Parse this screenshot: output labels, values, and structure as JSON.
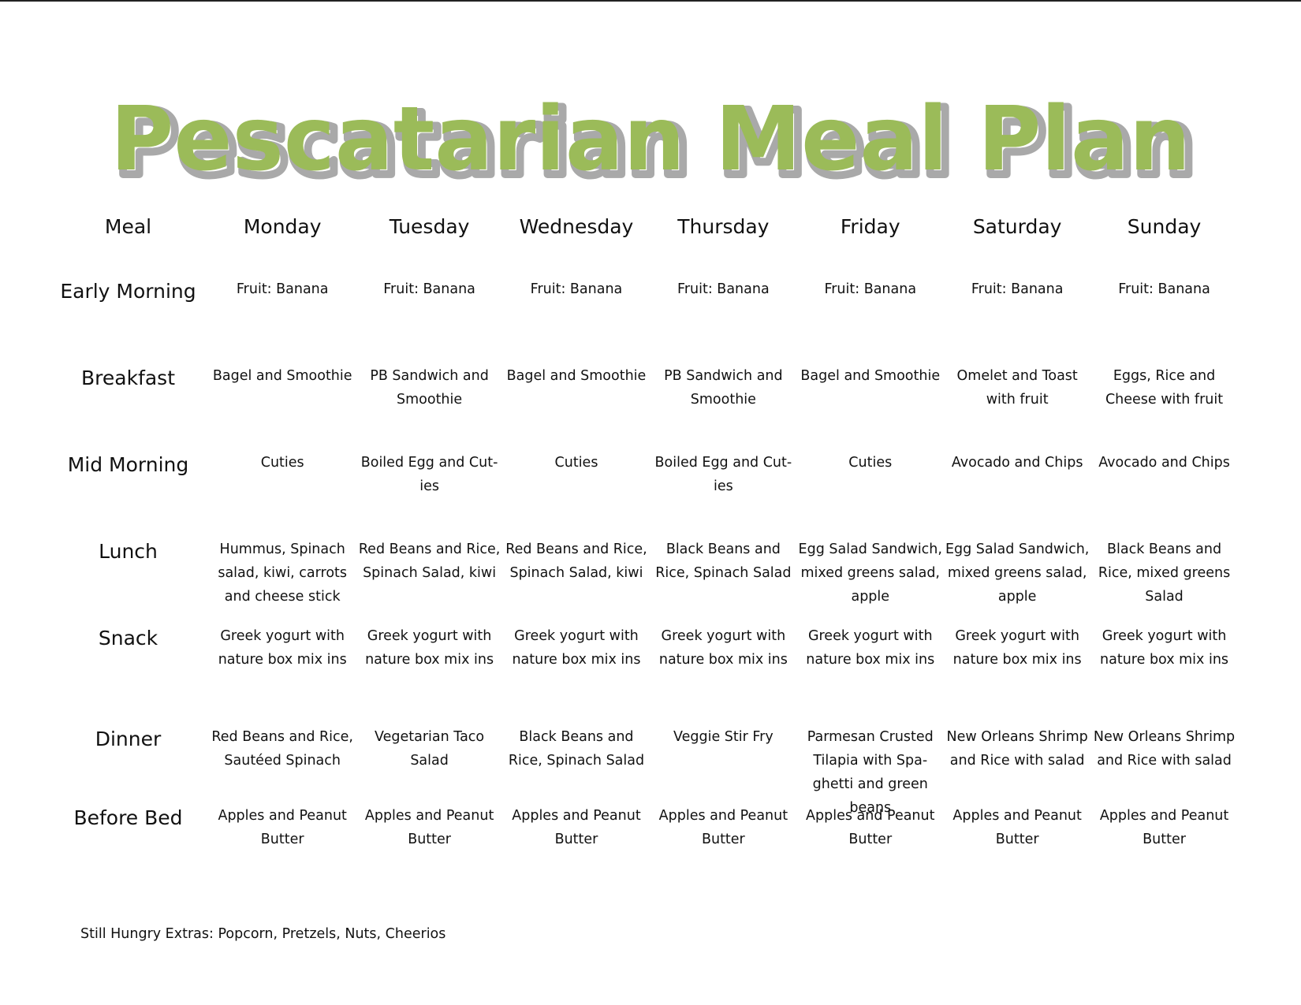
{
  "title": "Pescatarian Meal Plan",
  "colors": {
    "title_fill": "#9bbb59",
    "title_shadow": "#a9a9a9"
  },
  "header": {
    "meal": "Meal",
    "days": [
      "Monday",
      "Tuesday",
      "Wednesday",
      "Thursday",
      "Friday",
      "Saturday",
      "Sunday"
    ]
  },
  "rows": [
    {
      "meal": "Early Morning",
      "cells": [
        [
          "Fruit: Banana"
        ],
        [
          "Fruit: Banana"
        ],
        [
          "Fruit: Banana"
        ],
        [
          "Fruit: Banana"
        ],
        [
          "Fruit: Banana"
        ],
        [
          "Fruit: Banana"
        ],
        [
          "Fruit: Banana"
        ]
      ]
    },
    {
      "meal": "Breakfast",
      "cells": [
        [
          "Bagel and Smoothie"
        ],
        [
          "PB Sandwich and",
          "Smoothie"
        ],
        [
          "Bagel and Smoothie"
        ],
        [
          "PB Sandwich and",
          "Smoothie"
        ],
        [
          "Bagel and Smoothie"
        ],
        [
          "Omelet and Toast",
          "with fruit"
        ],
        [
          "Eggs, Rice and",
          "Cheese with fruit"
        ]
      ]
    },
    {
      "meal": "Mid Morning",
      "cells": [
        [
          "Cuties"
        ],
        [
          "Boiled Egg and Cut-",
          "ies"
        ],
        [
          "Cuties"
        ],
        [
          "Boiled Egg and Cut-",
          "ies"
        ],
        [
          "Cuties"
        ],
        [
          "Avocado and Chips"
        ],
        [
          "Avocado and Chips"
        ]
      ]
    },
    {
      "meal": "Lunch",
      "cells": [
        [
          "Hummus, Spinach",
          "salad, kiwi, carrots",
          "and cheese stick"
        ],
        [
          "Red Beans and Rice,",
          "Spinach Salad, kiwi"
        ],
        [
          "Red Beans and Rice,",
          "Spinach Salad, kiwi"
        ],
        [
          "Black Beans and",
          "Rice, Spinach Salad"
        ],
        [
          "Egg Salad Sandwich,",
          "mixed greens salad,",
          "apple"
        ],
        [
          "Egg Salad Sandwich,",
          "mixed greens salad,",
          "apple"
        ],
        [
          "Black Beans and",
          "Rice, mixed greens",
          "Salad"
        ]
      ]
    },
    {
      "meal": "Snack",
      "cells": [
        [
          "Greek yogurt with",
          "nature box mix ins"
        ],
        [
          "Greek yogurt with",
          "nature box mix ins"
        ],
        [
          "Greek yogurt with",
          "nature box mix ins"
        ],
        [
          "Greek yogurt with",
          "nature box mix ins"
        ],
        [
          "Greek yogurt with",
          "nature box mix ins"
        ],
        [
          "Greek yogurt with",
          "nature box mix ins"
        ],
        [
          "Greek yogurt with",
          "nature box mix ins"
        ]
      ]
    },
    {
      "meal": "Dinner",
      "cells": [
        [
          "Red Beans and Rice,",
          "Sautéed Spinach"
        ],
        [
          "Vegetarian Taco",
          "Salad"
        ],
        [
          "Black Beans and",
          "Rice, Spinach Salad"
        ],
        [
          "Veggie Stir Fry"
        ],
        [
          "Parmesan Crusted",
          "Tilapia with Spa-",
          "ghetti and green",
          "beans"
        ],
        [
          "New Orleans Shrimp",
          "and Rice  with salad"
        ],
        [
          "New Orleans Shrimp",
          "and Rice with salad"
        ]
      ]
    },
    {
      "meal": "Before Bed",
      "cells": [
        [
          "Apples and Peanut",
          "Butter"
        ],
        [
          "Apples and Peanut",
          "Butter"
        ],
        [
          "Apples and Peanut",
          "Butter"
        ],
        [
          "Apples and Peanut",
          "Butter"
        ],
        [
          "Apples and Peanut",
          "Butter"
        ],
        [
          "Apples and Peanut",
          "Butter"
        ],
        [
          "Apples and Peanut",
          "Butter"
        ]
      ]
    }
  ],
  "extras": "Still Hungry Extras: Popcorn, Pretzels, Nuts, Cheerios"
}
